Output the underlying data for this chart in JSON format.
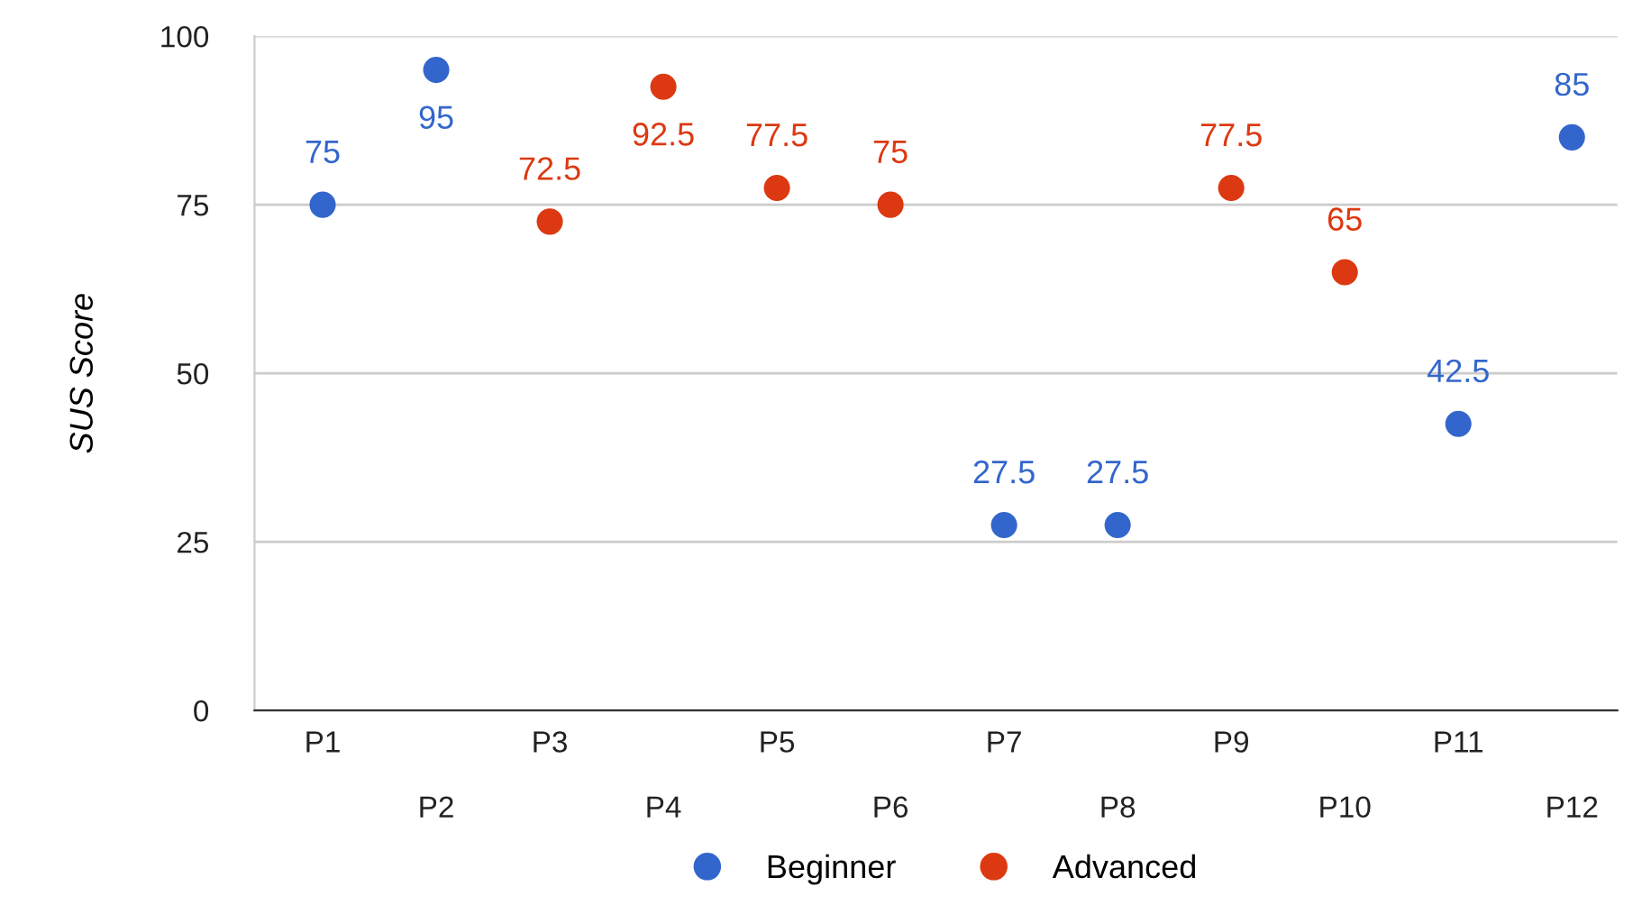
{
  "chart_data": {
    "type": "scatter",
    "ylabel": "SUS Score",
    "categories": [
      "P1",
      "P2",
      "P3",
      "P4",
      "P5",
      "P6",
      "P7",
      "P8",
      "P9",
      "P10",
      "P11",
      "P12"
    ],
    "series": [
      {
        "name": "Beginner",
        "color": "#3366cc",
        "values": [
          75,
          95,
          null,
          null,
          null,
          null,
          27.5,
          27.5,
          null,
          null,
          42.5,
          85
        ]
      },
      {
        "name": "Advanced",
        "color": "#dc3912",
        "values": [
          null,
          null,
          72.5,
          92.5,
          77.5,
          75,
          null,
          null,
          77.5,
          65,
          null,
          null
        ]
      }
    ],
    "ylim": [
      0,
      100
    ],
    "yticks": [
      0,
      25,
      50,
      75,
      100
    ],
    "grid": "y",
    "legend": "bottom",
    "marker": "circle",
    "data_labels": true
  }
}
